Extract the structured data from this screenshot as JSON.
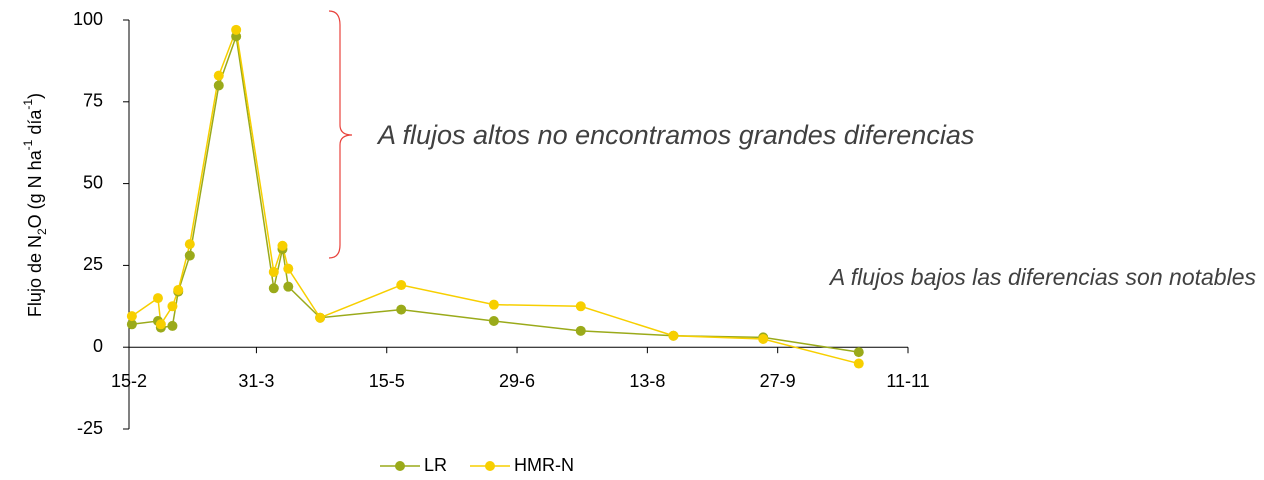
{
  "chart_data": {
    "type": "line",
    "ylabel": [
      "Flujo de N",
      "2",
      "O (g N ha",
      "-1",
      " día",
      "-1",
      ")"
    ],
    "annotations": [
      "A flujos altos no encontramos grandes diferencias",
      "A flujos bajos las diferencias son notables"
    ],
    "x": [
      47,
      56,
      57,
      61,
      63,
      67,
      77,
      83,
      96,
      99,
      101,
      112,
      140,
      172,
      202,
      234,
      265,
      298
    ],
    "series": [
      {
        "name": "LR",
        "color": "#9aaa1a",
        "values": [
          7,
          8,
          6,
          6.5,
          17,
          28,
          80,
          95,
          18,
          30,
          18.5,
          9,
          11.5,
          8,
          5,
          3.5,
          3,
          -1.5
        ]
      },
      {
        "name": "HMR-N",
        "color": "#f7cf00",
        "values": [
          9.5,
          15,
          7,
          12.5,
          17.5,
          31.5,
          83,
          97,
          23,
          31,
          24,
          9,
          19,
          13,
          12.5,
          3.5,
          2.5,
          -5
        ]
      }
    ],
    "xlim": [
      46,
      315
    ],
    "xticks": [
      {
        "value": 46,
        "label": "15-2"
      },
      {
        "value": 90,
        "label": "31-3"
      },
      {
        "value": 135,
        "label": "15-5"
      },
      {
        "value": 180,
        "label": "29-6"
      },
      {
        "value": 225,
        "label": "13-8"
      },
      {
        "value": 270,
        "label": "27-9"
      },
      {
        "value": 315,
        "label": "11-11"
      }
    ],
    "ylim": [
      -25,
      100
    ],
    "yticks": [
      -25,
      0,
      25,
      50,
      75,
      100
    ],
    "legend": "bottom"
  }
}
